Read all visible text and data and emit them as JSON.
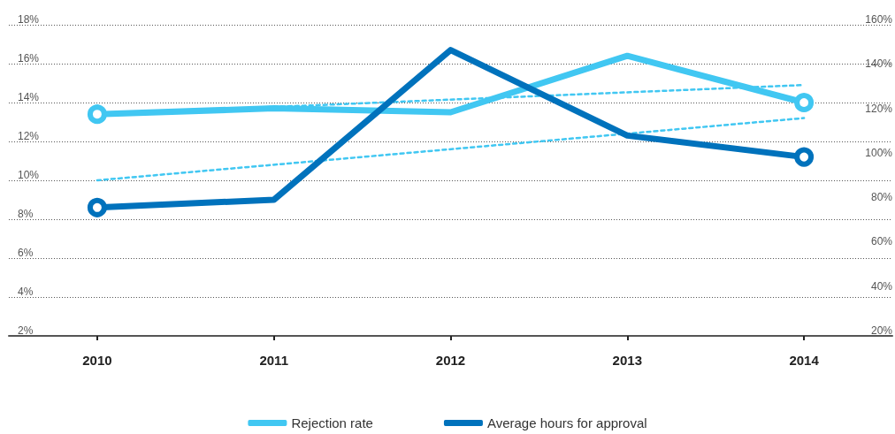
{
  "chart_data": {
    "type": "line",
    "categories": [
      "2010",
      "2011",
      "2012",
      "2013",
      "2014"
    ],
    "series": [
      {
        "name": "Rejection rate",
        "color": "#41c7f2",
        "values": [
          13.4,
          13.7,
          13.5,
          16.4,
          14.0
        ]
      },
      {
        "name": "Average hours for approval",
        "color": "#0072bc",
        "values": [
          8.6,
          9.0,
          16.7,
          12.3,
          11.2
        ]
      },
      {
        "color": "#41c7f2",
        "line_style": "dashed",
        "marker": "none",
        "values": [
          13.4,
          null,
          null,
          null,
          14.9
        ]
      },
      {
        "color": "#41c7f2",
        "line_style": "dashed",
        "marker": "none",
        "values": [
          10.0,
          null,
          null,
          null,
          13.2
        ]
      }
    ],
    "ylim": [
      2,
      18
    ],
    "yticks": [
      {
        "value": 2,
        "label": "2%"
      },
      {
        "value": 4,
        "label": "4%"
      },
      {
        "value": 6,
        "label": "6%"
      },
      {
        "value": 8,
        "label": "8%"
      },
      {
        "value": 10,
        "label": "10%"
      },
      {
        "value": 12,
        "label": "12%"
      },
      {
        "value": 14,
        "label": "14%"
      },
      {
        "value": 16,
        "label": "16%"
      },
      {
        "value": 18,
        "label": "18%"
      }
    ],
    "y2lim": [
      20,
      160
    ],
    "y2ticks": [
      {
        "value": 20,
        "label": "20%"
      },
      {
        "value": 40,
        "label": "40%"
      },
      {
        "value": 60,
        "label": "60%"
      },
      {
        "value": 80,
        "label": "80%"
      },
      {
        "value": 100,
        "label": "100%"
      },
      {
        "value": 120,
        "label": "120%"
      },
      {
        "value": 140,
        "label": "140%"
      },
      {
        "value": 160,
        "label": "160%"
      }
    ],
    "grid": "y",
    "legend": "bottom",
    "line_style": "solid"
  }
}
